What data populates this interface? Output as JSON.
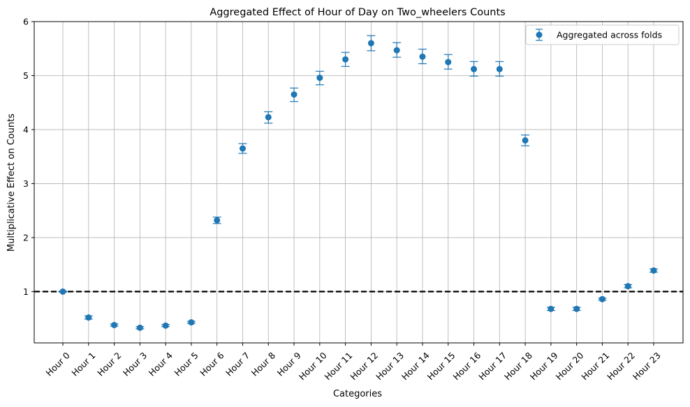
{
  "chart_data": {
    "type": "scatter",
    "title": "Aggregated Effect of Hour of Day on Two_wheelers Counts",
    "xlabel": "Categories",
    "ylabel": "Multiplicative Effect on Counts",
    "categories": [
      "Hour 0",
      "Hour 1",
      "Hour 2",
      "Hour 3",
      "Hour 4",
      "Hour 5",
      "Hour 6",
      "Hour 7",
      "Hour 8",
      "Hour 9",
      "Hour 10",
      "Hour 11",
      "Hour 12",
      "Hour 13",
      "Hour 14",
      "Hour 15",
      "Hour 16",
      "Hour 17",
      "Hour 18",
      "Hour 19",
      "Hour 20",
      "Hour 21",
      "Hour 22",
      "Hour 23"
    ],
    "series": [
      {
        "name": "Aggregated across folds",
        "color": "#1f77b4",
        "values": [
          1.0,
          0.52,
          0.38,
          0.33,
          0.37,
          0.43,
          2.32,
          3.65,
          4.23,
          4.65,
          4.96,
          5.3,
          5.6,
          5.47,
          5.35,
          5.25,
          5.12,
          5.12,
          3.8,
          0.68,
          0.68,
          0.86,
          1.1,
          1.39
        ],
        "lower": [
          0.99,
          0.49,
          0.36,
          0.31,
          0.35,
          0.41,
          2.26,
          3.56,
          4.12,
          4.52,
          4.83,
          5.17,
          5.46,
          5.34,
          5.22,
          5.12,
          4.99,
          4.99,
          3.7,
          0.65,
          0.65,
          0.84,
          1.07,
          1.36
        ],
        "upper": [
          1.01,
          0.55,
          0.4,
          0.35,
          0.39,
          0.45,
          2.38,
          3.74,
          4.33,
          4.77,
          5.08,
          5.43,
          5.74,
          5.61,
          5.49,
          5.39,
          5.26,
          5.26,
          3.9,
          0.71,
          0.71,
          0.88,
          1.13,
          1.42
        ]
      }
    ],
    "yticks": [
      1,
      2,
      3,
      4,
      5,
      6
    ],
    "ylim": [
      0.05,
      6.0
    ],
    "reference_line": {
      "y": 1,
      "style": "dashed",
      "color": "#000000"
    },
    "grid": true,
    "legend_position": "top-right"
  }
}
